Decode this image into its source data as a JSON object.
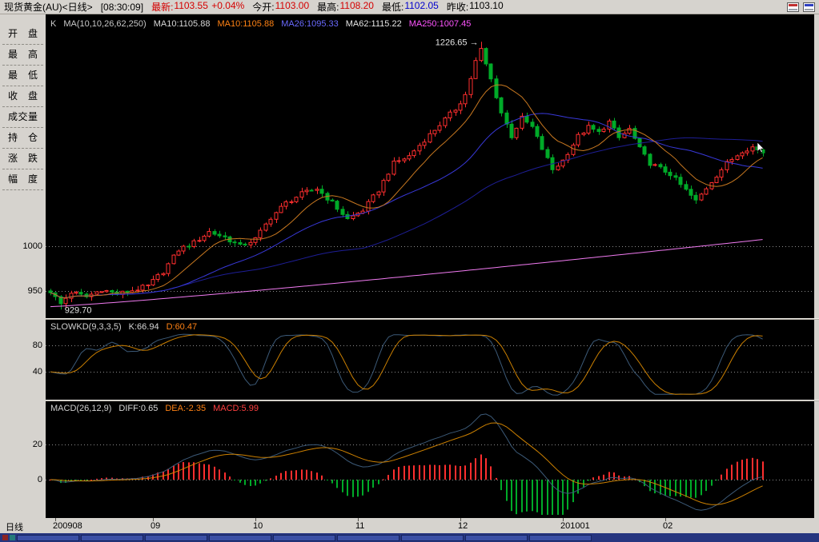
{
  "topbar": {
    "title": "现货黄金(AU)<日线>",
    "time": "[08:30:09]",
    "quotes": [
      {
        "key": "latest",
        "label": "最新",
        "value": "1103.55",
        "extra": "+0.04%",
        "label_color": "#d40000",
        "value_color": "#d40000",
        "extra_color": "#d40000"
      },
      {
        "key": "open",
        "label": "今开",
        "value": "1103.00",
        "label_color": "#000000",
        "value_color": "#d40000"
      },
      {
        "key": "high",
        "label": "最高",
        "value": "1108.20",
        "label_color": "#000000",
        "value_color": "#d40000"
      },
      {
        "key": "low",
        "label": "最低",
        "value": "1102.05",
        "label_color": "#000000",
        "value_color": "#0000cc"
      },
      {
        "key": "prev-close",
        "label": "昨收",
        "value": "1103.10",
        "label_color": "#000000",
        "value_color": "#000000"
      }
    ],
    "icons": [
      {
        "key": "candlestick-view",
        "color": "#c03030"
      },
      {
        "key": "grid-view",
        "color": "#3040c0"
      }
    ]
  },
  "sidebar": {
    "items": [
      {
        "key": "open",
        "label": "开盘"
      },
      {
        "key": "high",
        "label": "最高"
      },
      {
        "key": "low",
        "label": "最低"
      },
      {
        "key": "close",
        "label": "收盘"
      },
      {
        "key": "volume",
        "label": "成交量"
      },
      {
        "key": "position",
        "label": "持仓"
      },
      {
        "key": "change",
        "label": "涨跌"
      },
      {
        "key": "range",
        "label": "幅度"
      }
    ]
  },
  "main_legend": {
    "items": [
      {
        "text": "K",
        "color": "#c8c8c8"
      },
      {
        "text": "MA(10,10,26,62,250)",
        "color": "#c8c8c8"
      },
      {
        "text": "MA10:1105.88",
        "color": "#d8d8d8"
      },
      {
        "text": "MA10:1105.88",
        "color": "#ff8214"
      },
      {
        "text": "MA26:1095.33",
        "color": "#6a6aff"
      },
      {
        "text": "MA62:1115.22",
        "color": "#e6e6e6"
      },
      {
        "text": "MA250:1007.45",
        "color": "#ff54ff"
      }
    ]
  },
  "kd_legend": {
    "items": [
      {
        "text": "SLOWKD(9,3,3,5)",
        "color": "#d0d0d0"
      },
      {
        "text": "K:66.94",
        "color": "#d8d8d8"
      },
      {
        "text": "D:60.47",
        "color": "#ff8214"
      }
    ]
  },
  "macd_legend": {
    "items": [
      {
        "text": "MACD(26,12,9)",
        "color": "#d0d0d0"
      },
      {
        "text": "DIFF:0.65",
        "color": "#d8d8d8"
      },
      {
        "text": "DEA:-2.35",
        "color": "#ff8214"
      },
      {
        "text": "MACD:5.99",
        "color": "#ff4040"
      }
    ]
  },
  "annotations": {
    "peak_label": "1226.65",
    "peak_arrow": "→",
    "low_label": "929.70"
  },
  "xaxis": {
    "period": "日线",
    "labels": [
      {
        "text": "200908",
        "index": 1
      },
      {
        "text": "09",
        "index": 20
      },
      {
        "text": "10",
        "index": 40
      },
      {
        "text": "11",
        "index": 60
      },
      {
        "text": "12",
        "index": 80
      },
      {
        "text": "201001",
        "index": 100
      },
      {
        "text": "02",
        "index": 120
      }
    ]
  },
  "statusbar": {
    "color": "#26357f",
    "segment_color": "#3b4fa5",
    "segment_count": 9,
    "chips": [
      "#8c2424",
      "#247a7a"
    ]
  },
  "chart_data": {
    "type": "candlestick",
    "title": "现货黄金(AU) 日线",
    "instrument": "现货黄金(AU)",
    "period": "日线",
    "candle_count": 140,
    "last_close": 1103.55,
    "price_keypoints": [
      [
        0,
        950
      ],
      [
        2,
        936
      ],
      [
        4,
        949
      ],
      [
        7,
        944
      ],
      [
        10,
        952
      ],
      [
        13,
        947
      ],
      [
        16,
        951
      ],
      [
        19,
        956
      ],
      [
        22,
        972
      ],
      [
        25,
        996
      ],
      [
        28,
        1004
      ],
      [
        31,
        1016
      ],
      [
        34,
        1010
      ],
      [
        37,
        1000
      ],
      [
        40,
        1008
      ],
      [
        43,
        1032
      ],
      [
        46,
        1048
      ],
      [
        49,
        1058
      ],
      [
        52,
        1064
      ],
      [
        55,
        1048
      ],
      [
        58,
        1030
      ],
      [
        61,
        1040
      ],
      [
        64,
        1062
      ],
      [
        67,
        1092
      ],
      [
        70,
        1100
      ],
      [
        73,
        1118
      ],
      [
        76,
        1135
      ],
      [
        79,
        1152
      ],
      [
        81,
        1168
      ],
      [
        83,
        1205
      ],
      [
        84,
        1218
      ],
      [
        86,
        1185
      ],
      [
        88,
        1148
      ],
      [
        90,
        1122
      ],
      [
        92,
        1142
      ],
      [
        94,
        1132
      ],
      [
        96,
        1108
      ],
      [
        98,
        1085
      ],
      [
        100,
        1095
      ],
      [
        103,
        1122
      ],
      [
        105,
        1132
      ],
      [
        107,
        1126
      ],
      [
        109,
        1138
      ],
      [
        111,
        1120
      ],
      [
        113,
        1130
      ],
      [
        115,
        1108
      ],
      [
        117,
        1092
      ],
      [
        119,
        1086
      ],
      [
        121,
        1080
      ],
      [
        123,
        1068
      ],
      [
        126,
        1050
      ],
      [
        129,
        1072
      ],
      [
        132,
        1092
      ],
      [
        135,
        1106
      ],
      [
        137,
        1110
      ],
      [
        139,
        1103.55
      ]
    ],
    "extremes": {
      "high": {
        "index": 84,
        "value": 1226.65
      },
      "low": {
        "index": 2,
        "value": 929.7
      }
    },
    "y_axis": {
      "domain": [
        922,
        1250
      ],
      "ticks": [
        1000,
        950
      ]
    },
    "moving_averages": [
      {
        "name": "MA10",
        "period": 10,
        "last": 1105.88,
        "color": "#c87820"
      },
      {
        "name": "MA26",
        "period": 26,
        "last": 1095.33,
        "color": "#3838d8"
      },
      {
        "name": "MA62",
        "period": 62,
        "last": 1115.22,
        "color": "#1e1e96"
      },
      {
        "name": "MA250",
        "period": 250,
        "last": 1007.45,
        "color": "#f07af0",
        "path_estimate": {
          "start": 933,
          "end": 1007.45,
          "power": 1.15
        }
      }
    ],
    "indicators": {
      "slowkd": {
        "params": [
          9,
          3,
          3,
          5
        ],
        "k": 66.94,
        "d": 60.47,
        "ticks": [
          80,
          40
        ],
        "k_color": "#3c5a78",
        "d_color": "#cc8000"
      },
      "macd": {
        "params": [
          26,
          12,
          9
        ],
        "diff": 0.65,
        "dea": -2.35,
        "macd": 5.99,
        "ticks": [
          20,
          0
        ],
        "diff_color": "#3c5a78",
        "dea_color": "#cc8000"
      }
    },
    "colors": {
      "up": "#ff2e2e",
      "down": "#00aa28",
      "grid": "#8c8c8c",
      "annotation": "#e6e6e6",
      "background": "#000000"
    }
  }
}
